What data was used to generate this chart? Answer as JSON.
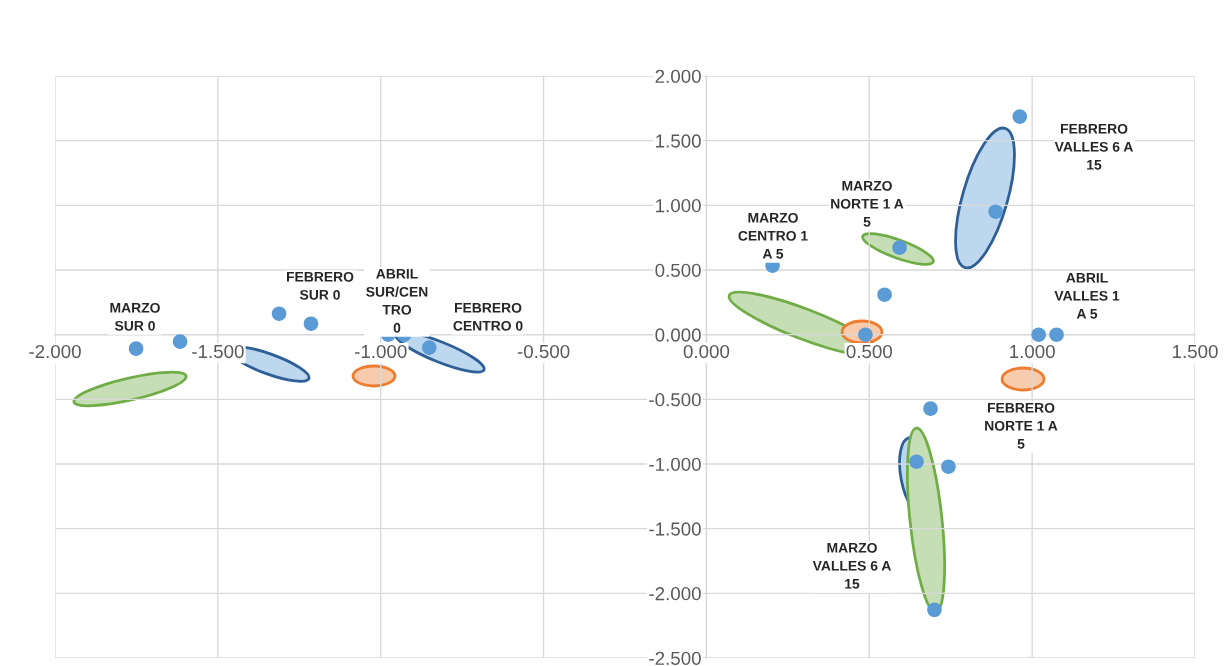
{
  "chart_data": {
    "type": "scatter",
    "x": [
      -1.751,
      -1.616,
      -1.312,
      -1.214,
      -0.977,
      -0.928,
      -0.851,
      0.203,
      0.547,
      0.593,
      0.488,
      0.888,
      0.962,
      1.02,
      1.075,
      0.688,
      0.645,
      0.743,
      0.7
    ],
    "series": [
      {
        "color": "#5b9bd5",
        "values": [
          -0.108,
          -0.054,
          0.162,
          0.085,
          0.0,
          0.0,
          -0.1,
          0.534,
          0.309,
          0.673,
          0.0,
          0.951,
          1.686,
          0.0,
          0.0,
          -0.572,
          -0.982,
          -1.021,
          -2.127
        ]
      }
    ],
    "xlim": [
      -2,
      1.5
    ],
    "ylim": [
      -2.5,
      2
    ],
    "xticks": [
      {
        "value": -2,
        "label": "-2.000"
      },
      {
        "value": -1.5,
        "label": "-1.500"
      },
      {
        "value": -1,
        "label": "-1.000"
      },
      {
        "value": -0.5,
        "label": "-0.500"
      },
      {
        "value": 0,
        "label": "0.000"
      },
      {
        "value": 0.5,
        "label": "0.500"
      },
      {
        "value": 1,
        "label": "1.000"
      },
      {
        "value": 1.5,
        "label": "1.500"
      }
    ],
    "yticks": [
      {
        "value": -2.5,
        "label": "-2.500"
      },
      {
        "value": -2,
        "label": "-2.000"
      },
      {
        "value": -1.5,
        "label": "-1.500"
      },
      {
        "value": -1,
        "label": "-1.000"
      },
      {
        "value": -0.5,
        "label": "-0.500"
      },
      {
        "value": 0,
        "label": "0.000"
      },
      {
        "value": 0.5,
        "label": "0.500"
      },
      {
        "value": 1,
        "label": "1.000"
      },
      {
        "value": 1.5,
        "label": "1.500"
      },
      {
        "value": 2,
        "label": "2.000"
      }
    ],
    "grid": true,
    "marker": "circle",
    "legend": false,
    "annotations": [
      "MARZO\nSUR 0",
      "FEBRERO\nSUR 0",
      "ABRIL\nSUR/CEN\nTRO\n0",
      "FEBRERO\nCENTRO 0",
      "MARZO\nCENTRO 1\nA 5",
      "MARZO\nNORTE 1 A\n5",
      "FEBRERO\nVALLES 6 A\n15",
      "ABRIL\nVALLES 1\nA 5",
      "FEBRERO\nNORTE 1 A\n5",
      "MARZO\nVALLES 6 A\n15"
    ]
  }
}
